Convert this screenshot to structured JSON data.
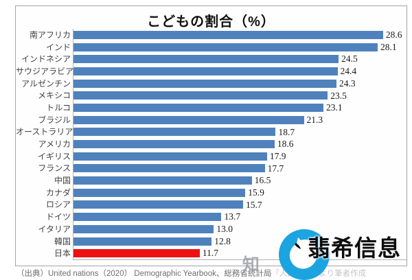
{
  "chart_data": {
    "type": "bar",
    "orientation": "horizontal",
    "title": "こどもの割合（%）",
    "categories": [
      "南アフリカ",
      "インド",
      "インドネシア",
      "サウジアラビア",
      "アルゼンチン",
      "メキシコ",
      "トルコ",
      "ブラジル",
      "オーストラリア",
      "アメリカ",
      "イギリス",
      "フランス",
      "中国",
      "カナダ",
      "ロシア",
      "ドイツ",
      "イタリア",
      "韓国",
      "日本"
    ],
    "values": [
      28.6,
      28.1,
      24.5,
      24.4,
      24.3,
      23.5,
      23.1,
      21.3,
      18.7,
      18.6,
      17.9,
      17.7,
      16.5,
      15.9,
      15.7,
      13.7,
      13.0,
      12.8,
      11.7
    ],
    "value_labels": [
      "28.6",
      "28.1",
      "24.5",
      "24.4",
      "24.3",
      "23.5",
      "23.1",
      "21.3",
      "18.7",
      "18.6",
      "17.9",
      "17.7",
      "16.5",
      "15.9",
      "15.7",
      "13.7",
      "13.0",
      "12.8",
      "11.7"
    ],
    "highlight_category": "日本",
    "bar_color": "#4f81bd",
    "highlight_color": "#ee1111",
    "xlim": [
      0,
      30
    ],
    "grid": false,
    "legend": false,
    "value_labels_shown": true
  },
  "source_note": {
    "visible_part": "（出典）United nations（2020） Demographic Yearbook、総務省統計局",
    "faded_part": "「人口推計」より筆者作成"
  },
  "watermark": {
    "partial_char": "知",
    "logo_text": "翡希信息",
    "logo_circle_color": "#1ba4e0"
  }
}
